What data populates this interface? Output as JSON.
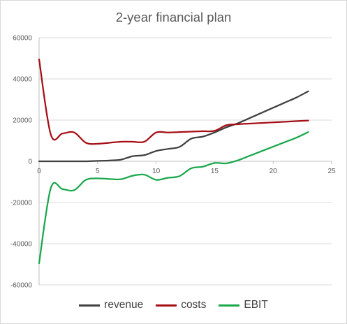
{
  "chart_data": {
    "type": "line",
    "title": "2-year financial plan",
    "xlabel": "",
    "ylabel": "",
    "xlim": [
      0,
      25
    ],
    "ylim": [
      -60000,
      60000
    ],
    "x_ticks": [
      "0",
      "5",
      "10",
      "15",
      "20",
      "25"
    ],
    "y_ticks": [
      "60000",
      "40000",
      "20000",
      "0",
      "-20000",
      "-40000",
      "-60000"
    ],
    "grid": "horizontal",
    "legend_position": "bottom",
    "x": [
      0,
      1,
      2,
      3,
      4,
      5,
      6,
      7,
      8,
      9,
      10,
      11,
      12,
      13,
      14,
      15,
      16,
      17,
      18,
      19,
      20,
      21,
      22,
      23
    ],
    "series": [
      {
        "name": "revenue",
        "color": "#404040",
        "values": [
          0,
          0,
          0,
          0,
          0,
          200,
          400,
          800,
          2500,
          3000,
          5000,
          6000,
          7000,
          11000,
          12000,
          14000,
          16500,
          18500,
          21000,
          23500,
          26000,
          28500,
          31000,
          34000
        ]
      },
      {
        "name": "costs",
        "color": "#a50f15",
        "values": [
          49500,
          13000,
          13500,
          14000,
          9000,
          8500,
          9000,
          9500,
          9500,
          9500,
          14000,
          14000,
          14200,
          14400,
          14600,
          14800,
          17500,
          18000,
          18300,
          18600,
          18900,
          19200,
          19500,
          19800
        ]
      },
      {
        "name": "EBIT",
        "color": "#19a84c",
        "values": [
          -49500,
          -13000,
          -13500,
          -14000,
          -9000,
          -8300,
          -8600,
          -8700,
          -7000,
          -6500,
          -9000,
          -8000,
          -7200,
          -3400,
          -2600,
          -800,
          -1000,
          500,
          2700,
          4900,
          7100,
          9300,
          11500,
          14200
        ]
      }
    ]
  }
}
